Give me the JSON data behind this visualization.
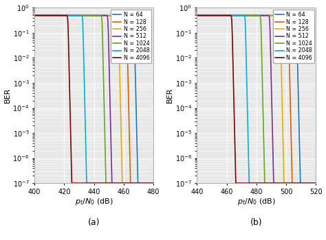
{
  "N_values": [
    64,
    128,
    256,
    512,
    1024,
    2048,
    4096
  ],
  "colors": [
    "#1f77b4",
    "#d95f02",
    "#e6ab02",
    "#7b2d8b",
    "#66a61e",
    "#00b0d8",
    "#7f0000"
  ],
  "legend_labels": [
    "N = 64",
    "N = 128",
    "N = 256",
    "N = 512",
    "N = 1024",
    "N = 2048",
    "N = 4096"
  ],
  "subplot_a": {
    "xlim": [
      400,
      480
    ],
    "xticks": [
      400,
      420,
      440,
      460,
      480
    ],
    "xlabel": "$p_t/N_0$ (dB)",
    "ylabel": "BER",
    "label": "(a)",
    "centers": [
      467.0,
      462.0,
      456.5,
      449.5,
      445.5,
      432.5,
      422.5
    ],
    "steepness": 6.0
  },
  "subplot_b": {
    "xlim": [
      440,
      520
    ],
    "xticks": [
      440,
      460,
      480,
      500,
      520
    ],
    "xlabel": "$p_t/N_0$ (dB)",
    "ylabel": "BER",
    "label": "(b)",
    "centers": [
      507.0,
      501.5,
      496.0,
      489.0,
      483.0,
      472.5,
      463.5
    ],
    "steepness": 6.0
  },
  "ylim_low": 1e-07,
  "ylim_high": 1.0,
  "ber_max": 0.5,
  "background_color": "#e8e8e8",
  "grid_color": "#ffffff",
  "linewidth": 1.2
}
